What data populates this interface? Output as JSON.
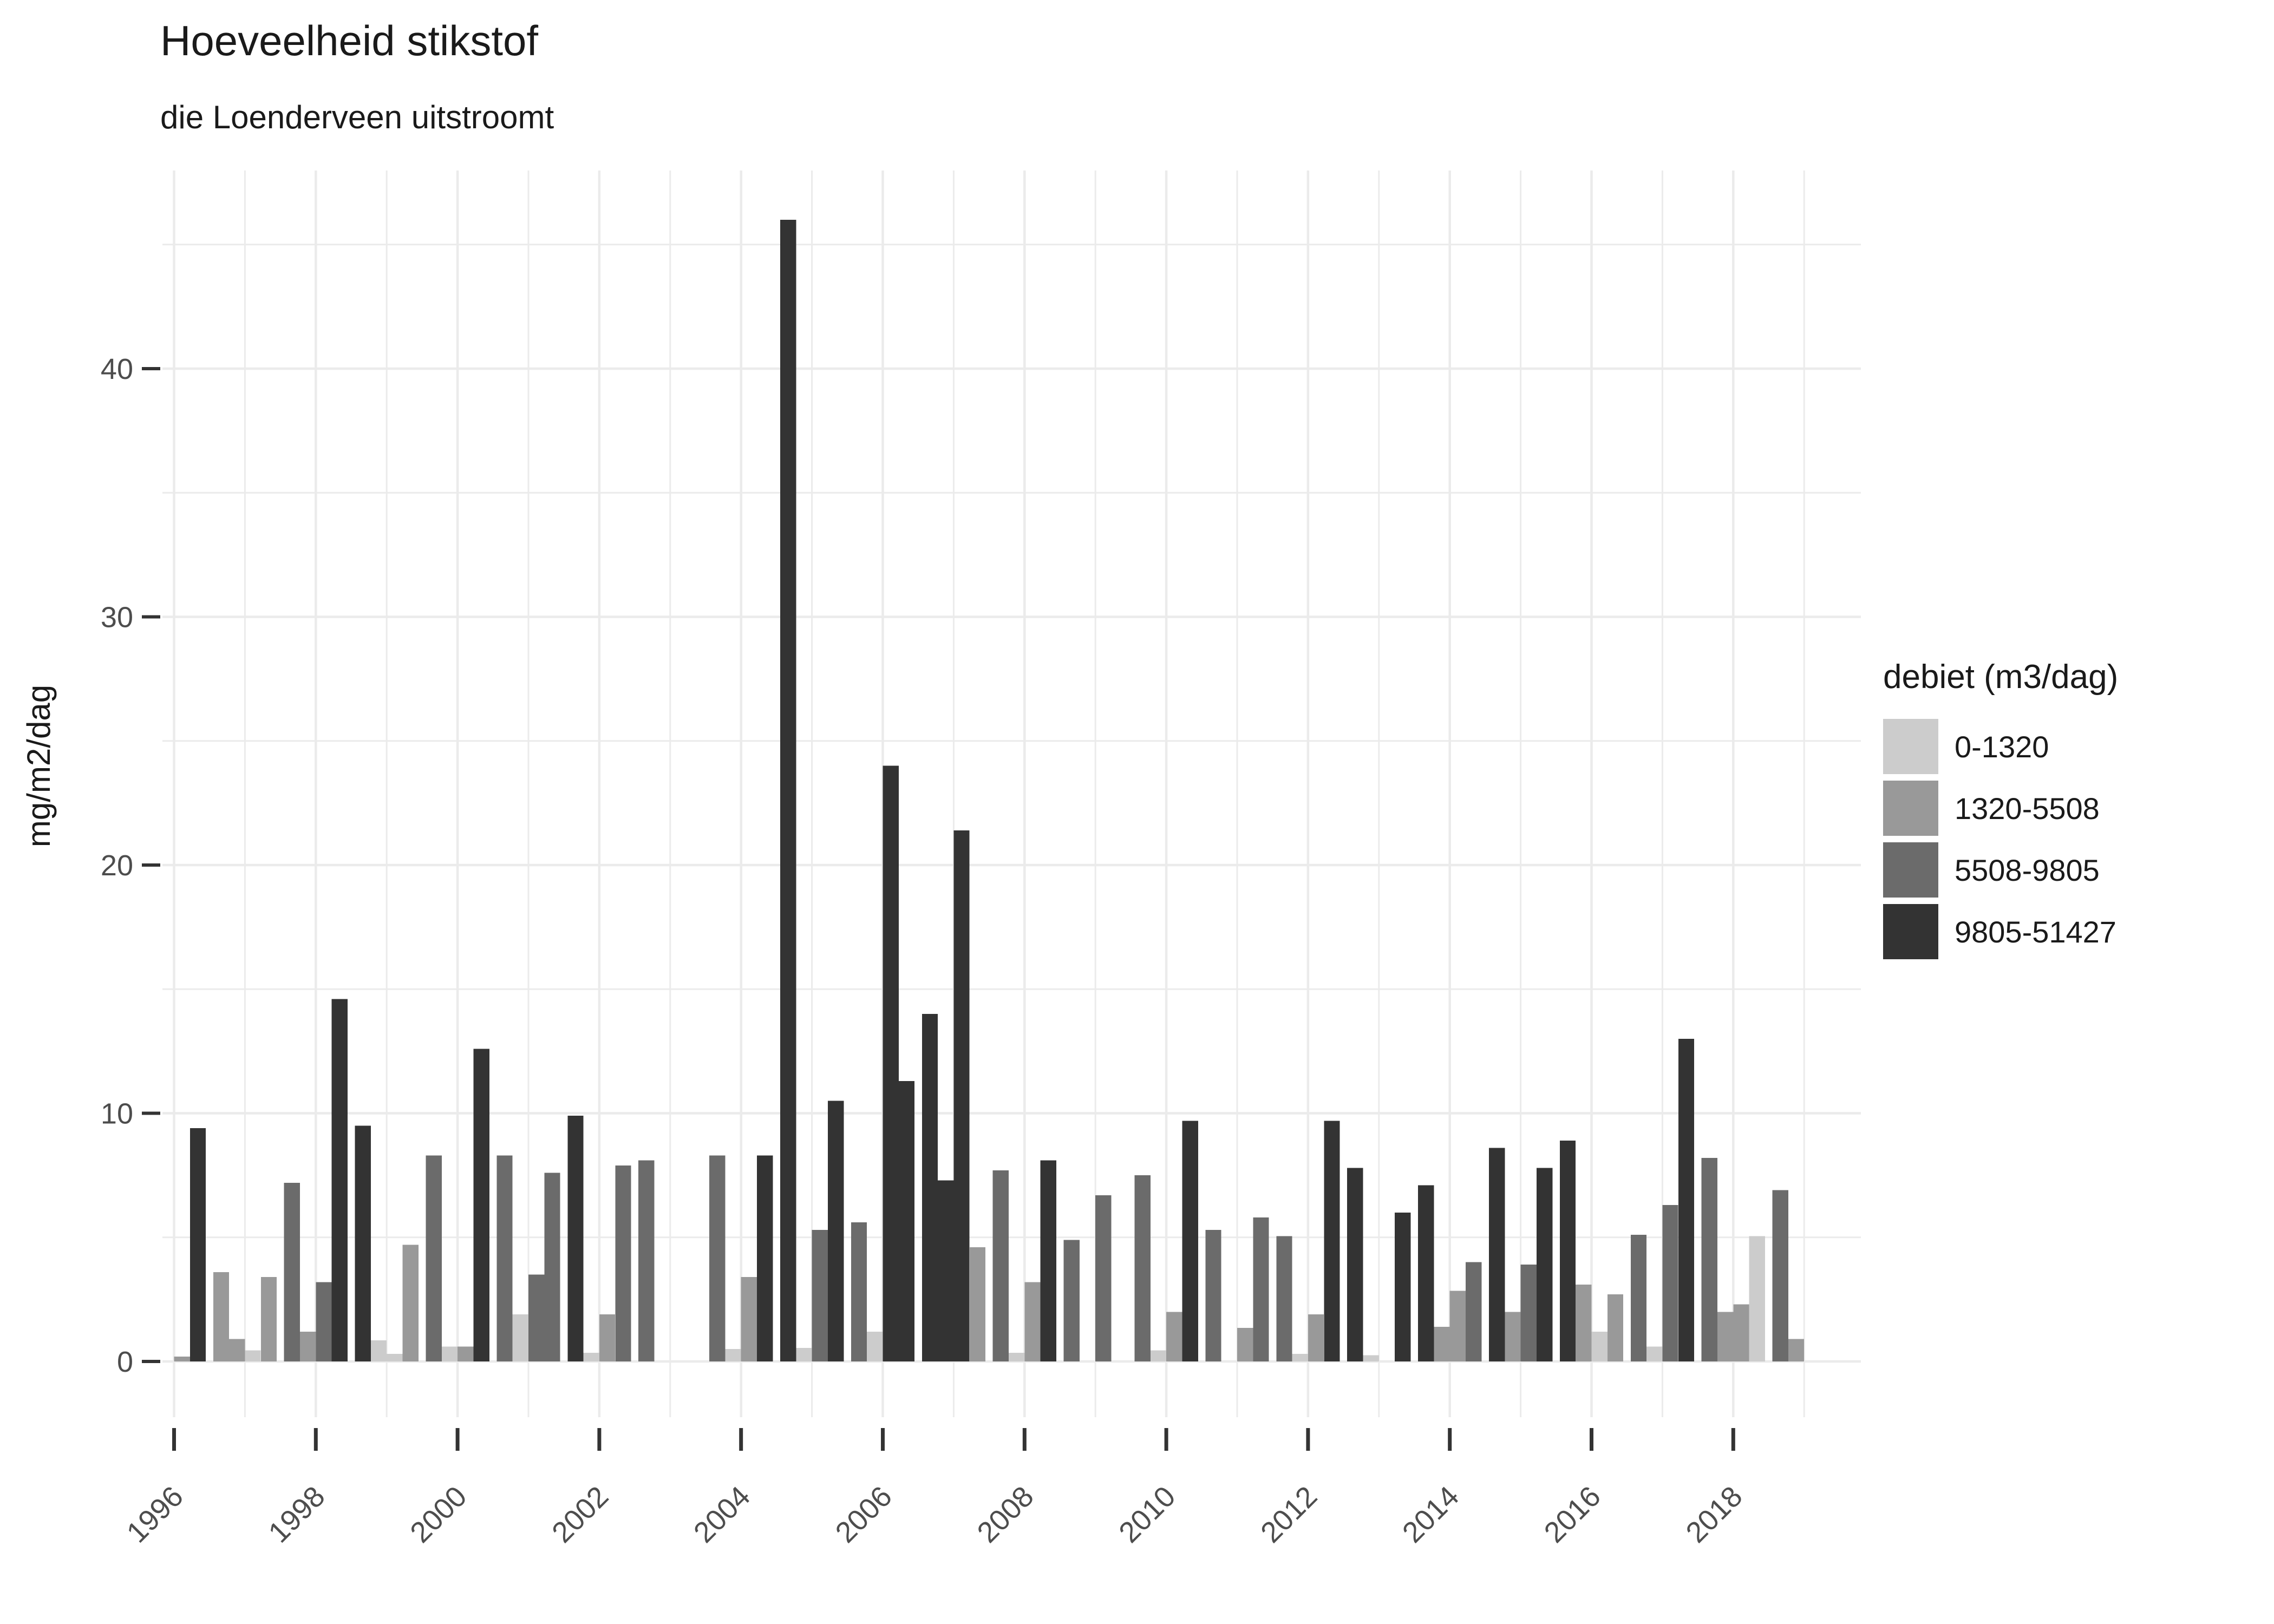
{
  "chart_data": {
    "type": "bar",
    "title": "Hoeveelheid stikstof",
    "subtitle": "die Loenderveen uitstroomt",
    "y_axis_label": "mg/m2/dag",
    "legend": {
      "title": "debiet (m3/dag)",
      "position": "right",
      "entries": [
        {
          "label": "0-1320",
          "color": "#CCCCCC"
        },
        {
          "label": "1320-5508",
          "color": "#999999"
        },
        {
          "label": "5508-9805",
          "color": "#6B6B6B"
        },
        {
          "label": "9805-51427",
          "color": "#333333"
        }
      ]
    },
    "x_tick_labels": [
      "1996",
      "1998",
      "2000",
      "2002",
      "2004",
      "2006",
      "2008",
      "2010",
      "2012",
      "2014",
      "2016",
      "2018"
    ],
    "x_year_range": [
      1996,
      2019
    ],
    "y_major_ticks": [
      0,
      10,
      20,
      30,
      40
    ],
    "y_minor_ticks": [
      5,
      15,
      25,
      35,
      45
    ],
    "y_range": [
      0,
      46
    ],
    "grid": true,
    "colors": {
      "grid": "#EBEBEB",
      "axis_text": "#4D4D4D",
      "tick_mark": "#333333",
      "text": "#1A1A1A"
    },
    "bars": [
      {
        "year": 1996,
        "quarter": 3,
        "category": 1,
        "value": 0.2
      },
      {
        "year": 1996,
        "quarter": 4,
        "category": 3,
        "value": 9.4
      },
      {
        "year": 1997,
        "quarter": 1,
        "category": 1,
        "value": 3.6
      },
      {
        "year": 1997,
        "quarter": 2,
        "category": 1,
        "value": 0.9
      },
      {
        "year": 1997,
        "quarter": 3,
        "category": 0,
        "value": 0.45
      },
      {
        "year": 1997,
        "quarter": 4,
        "category": 1,
        "value": 3.4
      },
      {
        "year": 1998,
        "quarter": 1,
        "category": 2,
        "value": 7.2
      },
      {
        "year": 1998,
        "quarter": 2,
        "category": 1,
        "value": 1.2
      },
      {
        "year": 1998,
        "quarter": 3,
        "category": 2,
        "value": 3.2
      },
      {
        "year": 1998,
        "quarter": 4,
        "category": 3,
        "value": 14.6
      },
      {
        "year": 1999,
        "quarter": 1,
        "category": 3,
        "value": 9.5
      },
      {
        "year": 1999,
        "quarter": 2,
        "category": 0,
        "value": 0.85
      },
      {
        "year": 1999,
        "quarter": 3,
        "category": 0,
        "value": 0.3
      },
      {
        "year": 1999,
        "quarter": 4,
        "category": 1,
        "value": 4.7
      },
      {
        "year": 2000,
        "quarter": 1,
        "category": 2,
        "value": 8.3
      },
      {
        "year": 2000,
        "quarter": 2,
        "category": 0,
        "value": 0.6
      },
      {
        "year": 2000,
        "quarter": 3,
        "category": 1,
        "value": 0.6
      },
      {
        "year": 2000,
        "quarter": 4,
        "category": 3,
        "value": 12.6
      },
      {
        "year": 2001,
        "quarter": 1,
        "category": 2,
        "value": 8.3
      },
      {
        "year": 2001,
        "quarter": 2,
        "category": 0,
        "value": 1.9
      },
      {
        "year": 2001,
        "quarter": 3,
        "category": 2,
        "value": 3.5
      },
      {
        "year": 2001,
        "quarter": 4,
        "category": 2,
        "value": 7.6
      },
      {
        "year": 2002,
        "quarter": 1,
        "category": 3,
        "value": 9.9
      },
      {
        "year": 2002,
        "quarter": 2,
        "category": 0,
        "value": 0.35
      },
      {
        "year": 2002,
        "quarter": 3,
        "category": 1,
        "value": 1.9
      },
      {
        "year": 2002,
        "quarter": 4,
        "category": 2,
        "value": 7.9
      },
      {
        "year": 2003,
        "quarter": 1,
        "category": 2,
        "value": 8.1
      },
      {
        "year": 2004,
        "quarter": 1,
        "category": 2,
        "value": 8.3
      },
      {
        "year": 2004,
        "quarter": 2,
        "category": 0,
        "value": 0.5
      },
      {
        "year": 2004,
        "quarter": 3,
        "category": 1,
        "value": 3.4
      },
      {
        "year": 2004,
        "quarter": 4,
        "category": 3,
        "value": 8.3
      },
      {
        "year": 2005,
        "quarter": 1,
        "category": 3,
        "value": 46.0
      },
      {
        "year": 2005,
        "quarter": 2,
        "category": 0,
        "value": 0.55
      },
      {
        "year": 2005,
        "quarter": 3,
        "category": 2,
        "value": 5.3
      },
      {
        "year": 2005,
        "quarter": 4,
        "category": 3,
        "value": 10.5
      },
      {
        "year": 2006,
        "quarter": 1,
        "category": 2,
        "value": 5.6
      },
      {
        "year": 2006,
        "quarter": 2,
        "category": 0,
        "value": 1.2
      },
      {
        "year": 2006,
        "quarter": 3,
        "category": 3,
        "value": 24.0
      },
      {
        "year": 2006,
        "quarter": 4,
        "category": 3,
        "value": 11.3
      },
      {
        "year": 2007,
        "quarter": 1,
        "category": 3,
        "value": 14.0
      },
      {
        "year": 2007,
        "quarter": 2,
        "category": 3,
        "value": 7.3
      },
      {
        "year": 2007,
        "quarter": 3,
        "category": 3,
        "value": 21.4
      },
      {
        "year": 2007,
        "quarter": 4,
        "category": 1,
        "value": 4.6
      },
      {
        "year": 2008,
        "quarter": 1,
        "category": 2,
        "value": 7.7
      },
      {
        "year": 2008,
        "quarter": 2,
        "category": 0,
        "value": 0.35
      },
      {
        "year": 2008,
        "quarter": 3,
        "category": 1,
        "value": 3.2
      },
      {
        "year": 2008,
        "quarter": 4,
        "category": 3,
        "value": 8.1
      },
      {
        "year": 2009,
        "quarter": 1,
        "category": 2,
        "value": 4.9
      },
      {
        "year": 2009,
        "quarter": 3,
        "category": 2,
        "value": 6.7
      },
      {
        "year": 2010,
        "quarter": 1,
        "category": 2,
        "value": 7.5
      },
      {
        "year": 2010,
        "quarter": 2,
        "category": 0,
        "value": 0.45
      },
      {
        "year": 2010,
        "quarter": 3,
        "category": 1,
        "value": 2.0
      },
      {
        "year": 2010,
        "quarter": 4,
        "category": 3,
        "value": 9.7
      },
      {
        "year": 2011,
        "quarter": 1,
        "category": 2,
        "value": 5.3
      },
      {
        "year": 2011,
        "quarter": 3,
        "category": 1,
        "value": 1.35
      },
      {
        "year": 2011,
        "quarter": 4,
        "category": 2,
        "value": 5.8
      },
      {
        "year": 2012,
        "quarter": 1,
        "category": 2,
        "value": 5.05
      },
      {
        "year": 2012,
        "quarter": 2,
        "category": 0,
        "value": 0.3
      },
      {
        "year": 2012,
        "quarter": 3,
        "category": 1,
        "value": 1.9
      },
      {
        "year": 2012,
        "quarter": 4,
        "category": 3,
        "value": 9.7
      },
      {
        "year": 2013,
        "quarter": 1,
        "category": 3,
        "value": 7.8
      },
      {
        "year": 2013,
        "quarter": 2,
        "category": 0,
        "value": 0.25
      },
      {
        "year": 2013,
        "quarter": 4,
        "category": 3,
        "value": 6.0
      },
      {
        "year": 2014,
        "quarter": 1,
        "category": 3,
        "value": 7.1
      },
      {
        "year": 2014,
        "quarter": 2,
        "category": 1,
        "value": 1.4
      },
      {
        "year": 2014,
        "quarter": 3,
        "category": 1,
        "value": 2.85
      },
      {
        "year": 2014,
        "quarter": 4,
        "category": 2,
        "value": 4.0
      },
      {
        "year": 2015,
        "quarter": 1,
        "category": 3,
        "value": 8.6
      },
      {
        "year": 2015,
        "quarter": 2,
        "category": 1,
        "value": 2.0
      },
      {
        "year": 2015,
        "quarter": 3,
        "category": 2,
        "value": 3.9
      },
      {
        "year": 2015,
        "quarter": 4,
        "category": 3,
        "value": 7.8
      },
      {
        "year": 2016,
        "quarter": 1,
        "category": 3,
        "value": 8.9
      },
      {
        "year": 2016,
        "quarter": 2,
        "category": 1,
        "value": 3.1
      },
      {
        "year": 2016,
        "quarter": 3,
        "category": 0,
        "value": 1.2
      },
      {
        "year": 2016,
        "quarter": 4,
        "category": 1,
        "value": 2.7
      },
      {
        "year": 2017,
        "quarter": 1,
        "category": 2,
        "value": 5.1
      },
      {
        "year": 2017,
        "quarter": 2,
        "category": 0,
        "value": 0.6
      },
      {
        "year": 2017,
        "quarter": 3,
        "category": 2,
        "value": 6.3
      },
      {
        "year": 2017,
        "quarter": 4,
        "category": 3,
        "value": 13.0
      },
      {
        "year": 2018,
        "quarter": 1,
        "category": 2,
        "value": 8.2
      },
      {
        "year": 2018,
        "quarter": 2,
        "category": 1,
        "value": 2.0
      },
      {
        "year": 2018,
        "quarter": 3,
        "category": 1,
        "value": 2.3
      },
      {
        "year": 2018,
        "quarter": 4,
        "category": 0,
        "value": 5.05
      },
      {
        "year": 2019,
        "quarter": 1,
        "category": 2,
        "value": 6.9
      },
      {
        "year": 2019,
        "quarter": 2,
        "category": 1,
        "value": 0.9
      }
    ]
  }
}
